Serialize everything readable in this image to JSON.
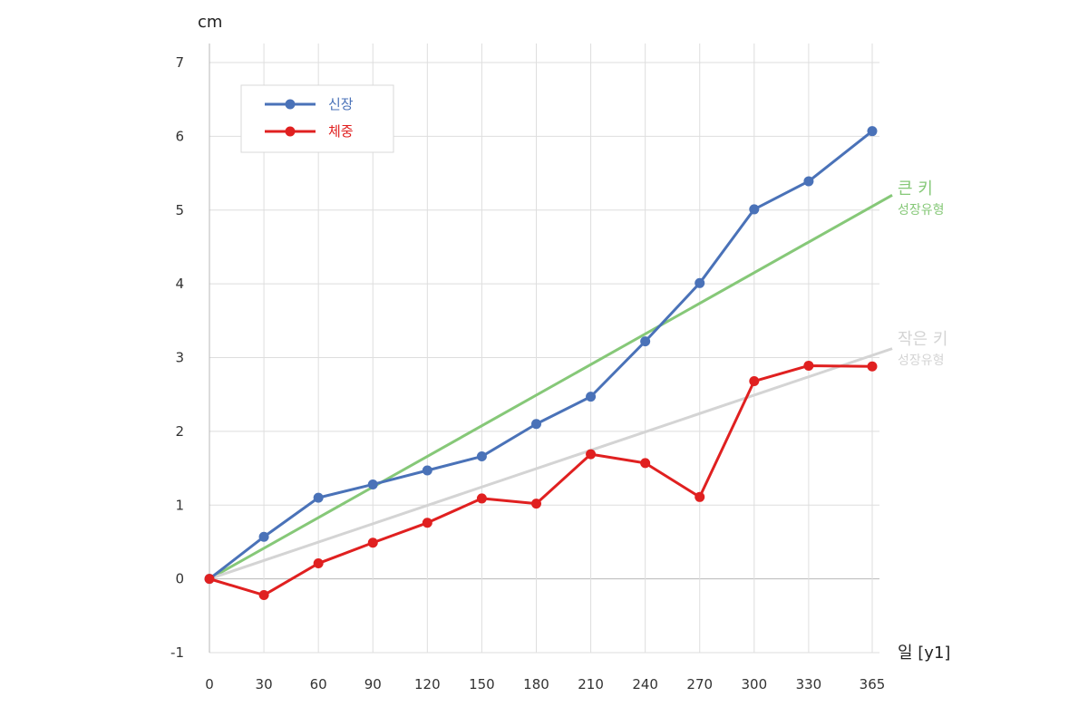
{
  "chart_data": {
    "type": "line",
    "y_unit": "cm",
    "x_unit": "일 [y1]",
    "x": [
      0,
      30,
      60,
      90,
      120,
      150,
      180,
      210,
      240,
      270,
      300,
      330,
      365
    ],
    "xlim": [
      0,
      365
    ],
    "ylim": [
      -1,
      7
    ],
    "yticks": [
      -1,
      0,
      1,
      2,
      3,
      4,
      5,
      6,
      7
    ],
    "grid": true,
    "legend_position": "top-left",
    "series": [
      {
        "name": "신장",
        "color": "#4a72b8",
        "values": [
          0,
          0.57,
          1.1,
          1.28,
          1.47,
          1.66,
          2.1,
          2.47,
          3.22,
          4.01,
          5.01,
          5.39,
          6.07
        ]
      },
      {
        "name": "체중",
        "color": "#e02020",
        "values": [
          0,
          -0.22,
          0.21,
          0.49,
          0.76,
          1.09,
          1.02,
          1.69,
          1.57,
          1.11,
          2.68,
          2.89,
          2.88
        ]
      }
    ],
    "reference_lines": [
      {
        "title": "큰 키",
        "subtitle": "성장유형",
        "color": "#86c878",
        "from": [
          0,
          0
        ],
        "to": [
          365,
          5.05
        ]
      },
      {
        "title": "작은 키",
        "subtitle": "성장유형",
        "color": "#d4d4d4",
        "from": [
          0,
          0
        ],
        "to": [
          365,
          3.03
        ]
      }
    ]
  }
}
